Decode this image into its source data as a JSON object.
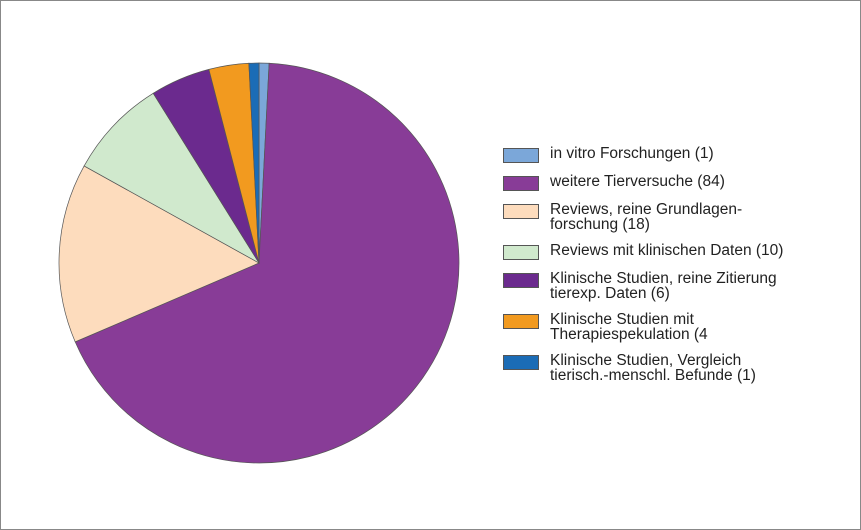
{
  "chart_data": {
    "type": "pie",
    "categories": [
      "in vitro Forschungen (1)",
      "weitere Tierversuche (84)",
      "Reviews, reine Grundlagen-\nforschung (18)",
      "Reviews mit klinischen Daten (10)",
      "Klinische Studien, reine Zitierung\ntierexp. Daten (6)",
      "Klinische Studien mit\nTherapiespekulation (4",
      "Klinische Studien, Vergleich\ntierisch.-menschl. Befunde (1)"
    ],
    "values": [
      1,
      84,
      18,
      10,
      6,
      4,
      1
    ],
    "colors": [
      "#7ba7d9",
      "#883c97",
      "#fddcbd",
      "#d0e9cd",
      "#6b2a8e",
      "#f29a1f",
      "#1b6cb6"
    ],
    "legend": "right"
  }
}
